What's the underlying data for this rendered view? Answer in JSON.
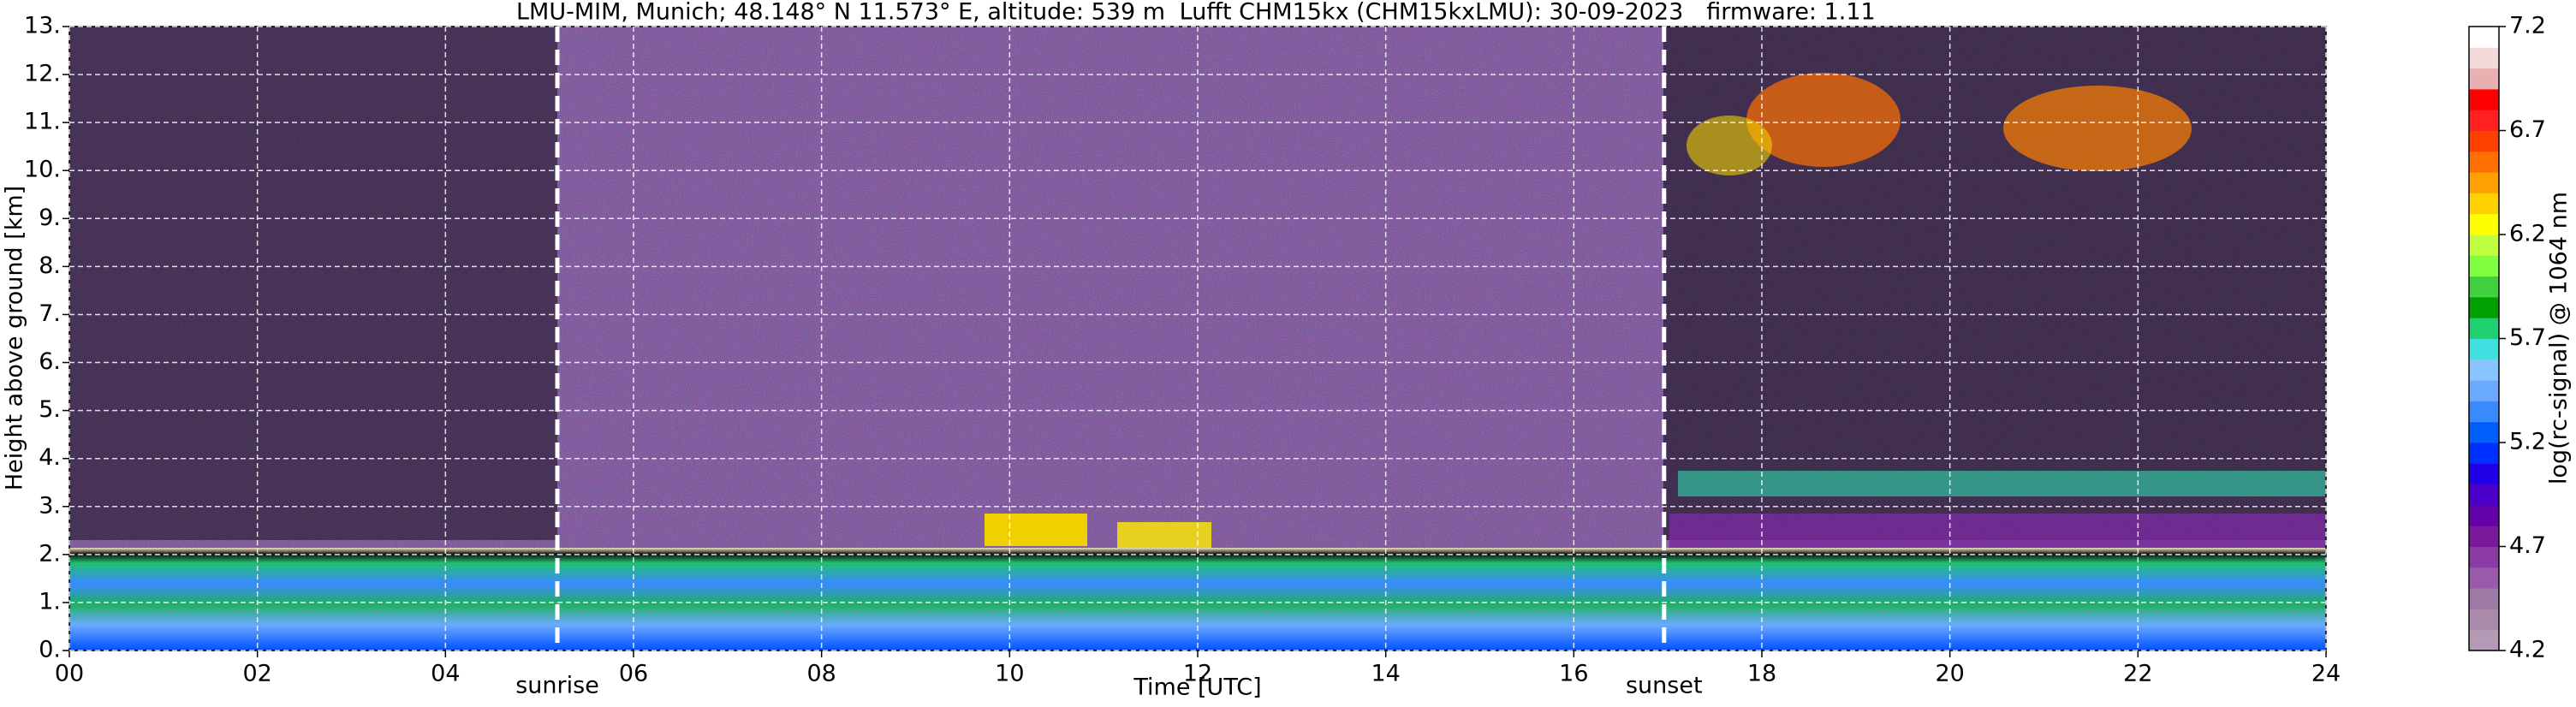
{
  "chart_data": {
    "type": "heatmap",
    "title_parts": [
      "LMU-MIM, Munich; 48.148° N 11.573° E, altitude: 539 m",
      "Lufft CHM15kx (CHM15kxLMU): 30-09-2023",
      "firmware: 1.11"
    ],
    "x_label": "Time [UTC]",
    "y_label": "Height above ground [km]",
    "xlim": [
      0,
      24
    ],
    "xticks": [
      {
        "value": 0,
        "label": "00"
      },
      {
        "value": 2,
        "label": "02"
      },
      {
        "value": 4,
        "label": "04"
      },
      {
        "value": 6,
        "label": "06"
      },
      {
        "value": 8,
        "label": "08"
      },
      {
        "value": 10,
        "label": "10"
      },
      {
        "value": 12,
        "label": "12"
      },
      {
        "value": 14,
        "label": "14"
      },
      {
        "value": 16,
        "label": "16"
      },
      {
        "value": 18,
        "label": "18"
      },
      {
        "value": 20,
        "label": "20"
      },
      {
        "value": 22,
        "label": "22"
      },
      {
        "value": 24,
        "label": "24"
      }
    ],
    "ylim": [
      0,
      13
    ],
    "yticks": [
      {
        "value": 0,
        "label": "0."
      },
      {
        "value": 1,
        "label": "1."
      },
      {
        "value": 2,
        "label": "2."
      },
      {
        "value": 3,
        "label": "3."
      },
      {
        "value": 4,
        "label": "4."
      },
      {
        "value": 5,
        "label": "5."
      },
      {
        "value": 6,
        "label": "6."
      },
      {
        "value": 7,
        "label": "7."
      },
      {
        "value": 8,
        "label": "8."
      },
      {
        "value": 9,
        "label": "9."
      },
      {
        "value": 10,
        "label": "10."
      },
      {
        "value": 11,
        "label": "11."
      },
      {
        "value": 12,
        "label": "12."
      },
      {
        "value": 13,
        "label": "13."
      }
    ],
    "grid": true,
    "annotations": [
      {
        "x": 5.19,
        "text": "sunrise"
      },
      {
        "x": 16.96,
        "text": "sunset"
      }
    ],
    "colorbar": {
      "label": "log(rc-signal) @ 1064 nm",
      "lim": [
        4.2,
        7.2
      ],
      "ticks": [
        4.2,
        4.7,
        5.2,
        5.7,
        6.2,
        6.7,
        7.2
      ],
      "colors": [
        "#b49ab4",
        "#a98aaa",
        "#a07aa6",
        "#9a5aaa",
        "#8a3aa2",
        "#7a1a9a",
        "#6400a8",
        "#4a00c8",
        "#2000e8",
        "#0030ff",
        "#0060ff",
        "#3a8aff",
        "#6aaaff",
        "#8ac4ff",
        "#40e0e0",
        "#20d070",
        "#00a000",
        "#40d040",
        "#80ff40",
        "#c0ff40",
        "#ffff00",
        "#ffd000",
        "#ffa000",
        "#ff7000",
        "#ff4000",
        "#ff2020",
        "#ff0000",
        "#e8b0b0",
        "#f4dada",
        "#ffffff"
      ]
    }
  }
}
